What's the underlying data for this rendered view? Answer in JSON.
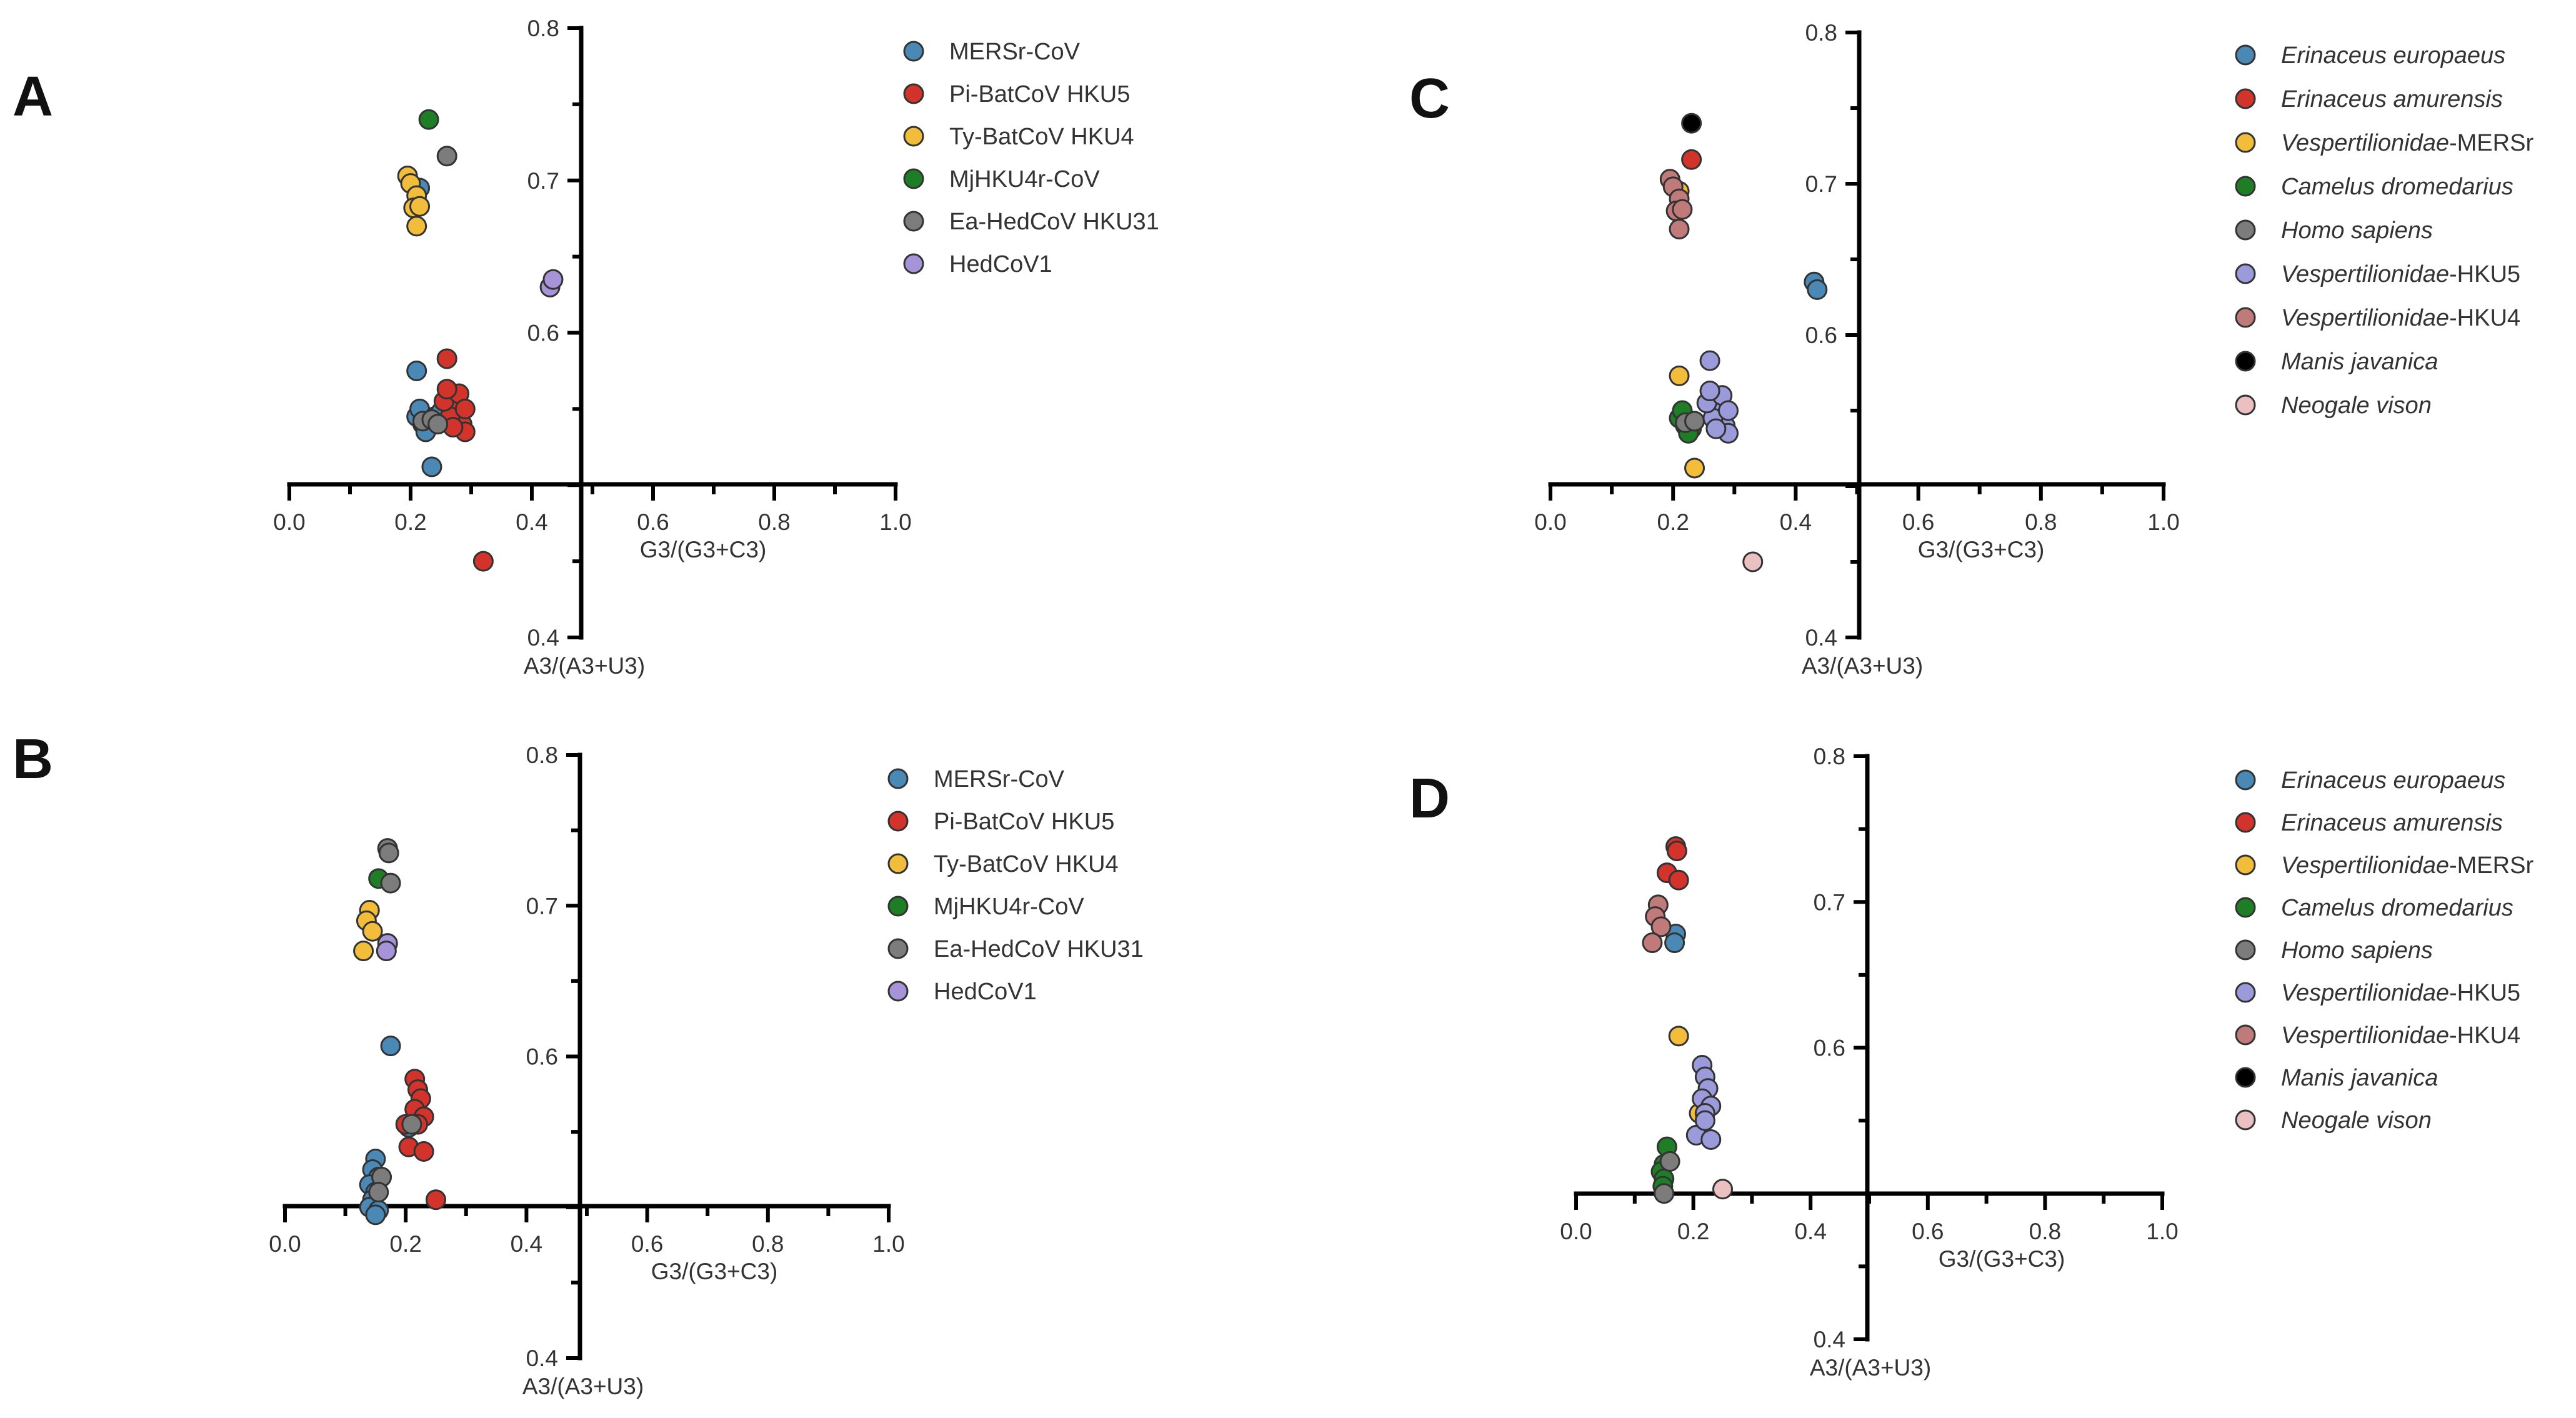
{
  "chart_data": [
    {
      "type": "scatter",
      "panel": "A",
      "xlabel": "G3/(G3+C3)",
      "ylabel": "A3/(A3+U3)",
      "xlim": [
        0.0,
        1.0
      ],
      "ylim": [
        0.4,
        0.8
      ],
      "xticks": [
        "0.0",
        "0.2",
        "0.4",
        "0.6",
        "0.8",
        "1.0"
      ],
      "yticks": [
        "0.4",
        "0.6",
        "0.7",
        "0.8"
      ],
      "legend_style": "normal",
      "series": [
        {
          "name": "MERSr-CoV",
          "color": "#4A88B5",
          "points": [
            [
              0.21,
              0.575
            ],
            [
              0.235,
              0.512
            ],
            [
              0.21,
              0.545
            ],
            [
              0.22,
              0.54
            ],
            [
              0.23,
              0.538
            ],
            [
              0.215,
              0.55
            ],
            [
              0.24,
              0.545
            ],
            [
              0.25,
              0.548
            ],
            [
              0.28,
              0.552
            ],
            [
              0.225,
              0.535
            ],
            [
              0.215,
              0.695
            ]
          ]
        },
        {
          "name": "Pi-BatCoV HKU5",
          "color": "#D2332B",
          "points": [
            [
              0.26,
              0.583
            ],
            [
              0.27,
              0.56
            ],
            [
              0.28,
              0.548
            ],
            [
              0.285,
              0.54
            ],
            [
              0.29,
              0.535
            ],
            [
              0.275,
              0.552
            ],
            [
              0.265,
              0.545
            ],
            [
              0.27,
              0.538
            ],
            [
              0.255,
              0.555
            ],
            [
              0.28,
              0.56
            ],
            [
              0.26,
              0.563
            ],
            [
              0.29,
              0.55
            ],
            [
              0.32,
              0.45
            ]
          ]
        },
        {
          "name": "Ty-BatCoV HKU4",
          "color": "#F2BD3A",
          "points": [
            [
              0.195,
              0.703
            ],
            [
              0.2,
              0.698
            ],
            [
              0.21,
              0.69
            ],
            [
              0.205,
              0.682
            ],
            [
              0.215,
              0.683
            ],
            [
              0.21,
              0.67
            ]
          ]
        },
        {
          "name": "MjHKU4r-CoV",
          "color": "#1E7E25",
          "points": [
            [
              0.23,
              0.74
            ]
          ]
        },
        {
          "name": "Ea-HedCoV HKU31",
          "color": "#7C7C7C",
          "points": [
            [
              0.26,
              0.716
            ],
            [
              0.22,
              0.542
            ],
            [
              0.235,
              0.543
            ],
            [
              0.245,
              0.54
            ]
          ]
        },
        {
          "name": "HedCoV1",
          "color": "#A793D8",
          "points": [
            [
              0.43,
              0.63
            ],
            [
              0.435,
              0.635
            ]
          ]
        }
      ]
    },
    {
      "type": "scatter",
      "panel": "B",
      "xlabel": "G3/(G3+C3)",
      "ylabel": "A3/(A3+U3)",
      "xlim": [
        0.0,
        1.0
      ],
      "ylim": [
        0.4,
        0.8
      ],
      "xticks": [
        "0.0",
        "0.2",
        "0.4",
        "0.6",
        "0.8",
        "1.0"
      ],
      "yticks": [
        "0.4",
        "0.6",
        "0.7",
        "0.8"
      ],
      "legend_style": "normal",
      "series": [
        {
          "name": "MERSr-CoV",
          "color": "#4A88B5",
          "points": [
            [
              0.175,
              0.607
            ],
            [
              0.205,
              0.553
            ],
            [
              0.15,
              0.532
            ],
            [
              0.145,
              0.525
            ],
            [
              0.155,
              0.52
            ],
            [
              0.14,
              0.515
            ],
            [
              0.15,
              0.51
            ],
            [
              0.145,
              0.505
            ],
            [
              0.14,
              0.5
            ],
            [
              0.155,
              0.498
            ],
            [
              0.15,
              0.495
            ]
          ]
        },
        {
          "name": "Pi-BatCoV HKU5",
          "color": "#D2332B",
          "points": [
            [
              0.215,
              0.585
            ],
            [
              0.22,
              0.578
            ],
            [
              0.225,
              0.572
            ],
            [
              0.215,
              0.565
            ],
            [
              0.23,
              0.56
            ],
            [
              0.22,
              0.555
            ],
            [
              0.2,
              0.555
            ],
            [
              0.205,
              0.54
            ],
            [
              0.23,
              0.537
            ],
            [
              0.25,
              0.505
            ]
          ]
        },
        {
          "name": "Ty-BatCoV HKU4",
          "color": "#F2BD3A",
          "points": [
            [
              0.14,
              0.697
            ],
            [
              0.135,
              0.69
            ],
            [
              0.145,
              0.683
            ],
            [
              0.13,
              0.67
            ]
          ]
        },
        {
          "name": "MjHKU4r-CoV",
          "color": "#1E7E25",
          "points": [
            [
              0.155,
              0.718
            ]
          ]
        },
        {
          "name": "Ea-HedCoV HKU31",
          "color": "#7C7C7C",
          "points": [
            [
              0.17,
              0.738
            ],
            [
              0.172,
              0.735
            ],
            [
              0.175,
              0.715
            ],
            [
              0.21,
              0.555
            ],
            [
              0.16,
              0.52
            ],
            [
              0.155,
              0.51
            ]
          ]
        },
        {
          "name": "HedCoV1",
          "color": "#A793D8",
          "points": [
            [
              0.17,
              0.675
            ],
            [
              0.168,
              0.67
            ]
          ]
        }
      ]
    },
    {
      "type": "scatter",
      "panel": "C",
      "xlabel": "G3/(G3+C3)",
      "ylabel": "A3/(A3+U3)",
      "xlim": [
        0.0,
        1.0
      ],
      "ylim": [
        0.4,
        0.8
      ],
      "xticks": [
        "0.0",
        "0.2",
        "0.4",
        "0.6",
        "0.8",
        "1.0"
      ],
      "yticks": [
        "0.4",
        "0.6",
        "0.7",
        "0.8"
      ],
      "legend_style": "mixed",
      "series": [
        {
          "name": "Erinaceus europaeus",
          "italic": "Erinaceus europaeus",
          "plain": "",
          "color": "#4A88B5",
          "points": [
            [
              0.43,
              0.635
            ],
            [
              0.435,
              0.63
            ]
          ]
        },
        {
          "name": "Erinaceus amurensis",
          "italic": "Erinaceus amurensis",
          "plain": "",
          "color": "#D2332B",
          "points": [
            [
              0.23,
              0.716
            ]
          ]
        },
        {
          "name": "Vespertilionidae-MERSr",
          "italic": "Vespertilionidae",
          "plain": "-MERSr",
          "color": "#F2BD3A",
          "points": [
            [
              0.21,
              0.695
            ],
            [
              0.21,
              0.573
            ],
            [
              0.28,
              0.552
            ],
            [
              0.235,
              0.512
            ]
          ]
        },
        {
          "name": "Camelus dromedarius",
          "italic": "Camelus dromedarius",
          "plain": "",
          "color": "#1E7E25",
          "points": [
            [
              0.21,
              0.545
            ],
            [
              0.22,
              0.54
            ],
            [
              0.23,
              0.538
            ],
            [
              0.215,
              0.55
            ],
            [
              0.225,
              0.535
            ]
          ]
        },
        {
          "name": "Homo sapiens",
          "italic": "Homo sapiens",
          "plain": "",
          "color": "#7C7C7C",
          "points": [
            [
              0.22,
              0.542
            ],
            [
              0.235,
              0.543
            ]
          ]
        },
        {
          "name": "Vespertilionidae-HKU5",
          "italic": "Vespertilionidae",
          "plain": "-HKU5",
          "color": "#9B9BDB",
          "points": [
            [
              0.26,
              0.583
            ],
            [
              0.27,
              0.56
            ],
            [
              0.28,
              0.548
            ],
            [
              0.285,
              0.54
            ],
            [
              0.29,
              0.535
            ],
            [
              0.275,
              0.552
            ],
            [
              0.265,
              0.545
            ],
            [
              0.27,
              0.538
            ],
            [
              0.255,
              0.555
            ],
            [
              0.28,
              0.56
            ],
            [
              0.26,
              0.563
            ],
            [
              0.29,
              0.55
            ]
          ]
        },
        {
          "name": "Vespertilionidae-HKU4",
          "italic": "Vespertilionidae",
          "plain": "-HKU4",
          "color": "#C07A7A",
          "points": [
            [
              0.195,
              0.703
            ],
            [
              0.2,
              0.698
            ],
            [
              0.21,
              0.69
            ],
            [
              0.205,
              0.682
            ],
            [
              0.215,
              0.683
            ],
            [
              0.21,
              0.67
            ]
          ]
        },
        {
          "name": "Manis javanica",
          "italic": "Manis javanica",
          "plain": "",
          "color": "#000000",
          "points": [
            [
              0.23,
              0.74
            ]
          ]
        },
        {
          "name": "Neogale vison",
          "italic": "Neogale vison",
          "plain": "",
          "color": "#EBC0C0",
          "points": [
            [
              0.33,
              0.45
            ]
          ]
        }
      ]
    },
    {
      "type": "scatter",
      "panel": "D",
      "xlabel": "G3/(G3+C3)",
      "ylabel": "A3/(A3+U3)",
      "xlim": [
        0.0,
        1.0
      ],
      "ylim": [
        0.4,
        0.8
      ],
      "xticks": [
        "0.0",
        "0.2",
        "0.4",
        "0.6",
        "0.8",
        "1.0"
      ],
      "yticks": [
        "0.4",
        "0.6",
        "0.7",
        "0.8"
      ],
      "legend_style": "mixed",
      "series": [
        {
          "name": "Erinaceus europaeus",
          "italic": "Erinaceus europaeus",
          "plain": "",
          "color": "#4A88B5",
          "points": [
            [
              0.17,
              0.678
            ],
            [
              0.168,
              0.672
            ]
          ]
        },
        {
          "name": "Erinaceus amurensis",
          "italic": "Erinaceus amurensis",
          "plain": "",
          "color": "#D2332B",
          "points": [
            [
              0.17,
              0.738
            ],
            [
              0.172,
              0.735
            ],
            [
              0.155,
              0.72
            ],
            [
              0.175,
              0.715
            ]
          ]
        },
        {
          "name": "Vespertilionidae-MERSr",
          "italic": "Vespertilionidae",
          "plain": "-MERSr",
          "color": "#F2BD3A",
          "points": [
            [
              0.175,
              0.608
            ],
            [
              0.21,
              0.555
            ]
          ]
        },
        {
          "name": "Camelus dromedarius",
          "italic": "Camelus dromedarius",
          "plain": "",
          "color": "#1E7E25",
          "points": [
            [
              0.155,
              0.532
            ],
            [
              0.15,
              0.52
            ],
            [
              0.145,
              0.515
            ],
            [
              0.15,
              0.51
            ],
            [
              0.148,
              0.505
            ]
          ]
        },
        {
          "name": "Homo sapiens",
          "italic": "Homo sapiens",
          "plain": "",
          "color": "#7C7C7C",
          "points": [
            [
              0.16,
              0.522
            ],
            [
              0.15,
              0.5
            ]
          ]
        },
        {
          "name": "Vespertilionidae-HKU5",
          "italic": "Vespertilionidae",
          "plain": "-HKU5",
          "color": "#9B9BDB",
          "points": [
            [
              0.215,
              0.588
            ],
            [
              0.22,
              0.58
            ],
            [
              0.225,
              0.572
            ],
            [
              0.215,
              0.565
            ],
            [
              0.23,
              0.56
            ],
            [
              0.22,
              0.555
            ],
            [
              0.205,
              0.54
            ],
            [
              0.23,
              0.537
            ],
            [
              0.22,
              0.55
            ]
          ]
        },
        {
          "name": "Vespertilionidae-HKU4",
          "italic": "Vespertilionidae",
          "plain": "-HKU4",
          "color": "#C07A7A",
          "points": [
            [
              0.14,
              0.698
            ],
            [
              0.135,
              0.69
            ],
            [
              0.145,
              0.683
            ],
            [
              0.13,
              0.672
            ]
          ]
        },
        {
          "name": "Manis javanica",
          "italic": "Manis javanica",
          "plain": "",
          "color": "#000000",
          "points": []
        },
        {
          "name": "Neogale vison",
          "italic": "Neogale vison",
          "plain": "",
          "color": "#EBC0C0",
          "points": [
            [
              0.25,
              0.503
            ]
          ]
        }
      ]
    }
  ]
}
